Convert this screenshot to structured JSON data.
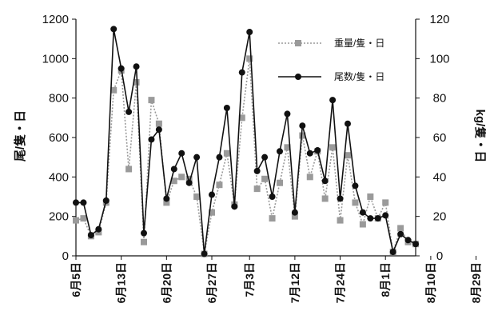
{
  "chart_data": {
    "type": "line",
    "y_left": {
      "label": "尾/隻・日",
      "ylim": [
        0,
        1200
      ],
      "ticks": [
        "0",
        "200",
        "400",
        "600",
        "800",
        "1000",
        "1200"
      ]
    },
    "y_right": {
      "label": "kg/隻・日",
      "ylim": [
        0,
        120
      ],
      "ticks": [
        "0",
        "20",
        "40",
        "60",
        "80",
        "100",
        "120"
      ]
    },
    "x_tick_labels": [
      {
        "label": "6月5日",
        "index": 0
      },
      {
        "label": "6月13日",
        "index": 6
      },
      {
        "label": "6月20日",
        "index": 12
      },
      {
        "label": "6月27日",
        "index": 18
      },
      {
        "label": "7月3日",
        "index": 23
      },
      {
        "label": "7月12日",
        "index": 29
      },
      {
        "label": "7月24日",
        "index": 35
      },
      {
        "label": "8月1日",
        "index": 41
      },
      {
        "label": "8月10日",
        "index": 47
      },
      {
        "label": "8月29日",
        "index": 53
      }
    ],
    "series": [
      {
        "name": "重量/隻・日",
        "axis": "right",
        "color": "#9a9a9a",
        "marker": "square",
        "line_style": "dotted",
        "values": [
          18,
          19,
          10,
          12,
          27,
          84,
          94,
          44,
          88,
          7,
          79,
          67,
          27,
          38,
          40,
          39,
          30,
          1,
          22,
          36,
          52,
          26,
          70,
          100,
          34,
          39,
          19,
          37,
          55,
          20,
          61,
          40,
          53,
          29,
          55,
          18,
          51,
          27,
          16,
          30,
          19,
          27,
          2,
          14,
          7,
          6
        ]
      },
      {
        "name": "尾数/隻・日",
        "axis": "left",
        "color": "#111111",
        "marker": "circle",
        "line_style": "solid",
        "values": [
          270,
          270,
          105,
          135,
          280,
          1150,
          950,
          730,
          960,
          115,
          590,
          640,
          290,
          440,
          520,
          370,
          500,
          10,
          310,
          500,
          750,
          250,
          930,
          1135,
          430,
          500,
          300,
          530,
          720,
          220,
          660,
          520,
          535,
          380,
          790,
          290,
          670,
          355,
          220,
          190,
          190,
          205,
          20,
          110,
          80,
          60
        ]
      }
    ]
  },
  "legend": {
    "entry_1": "重量/隻・日",
    "entry_2": "尾数/隻・日"
  }
}
